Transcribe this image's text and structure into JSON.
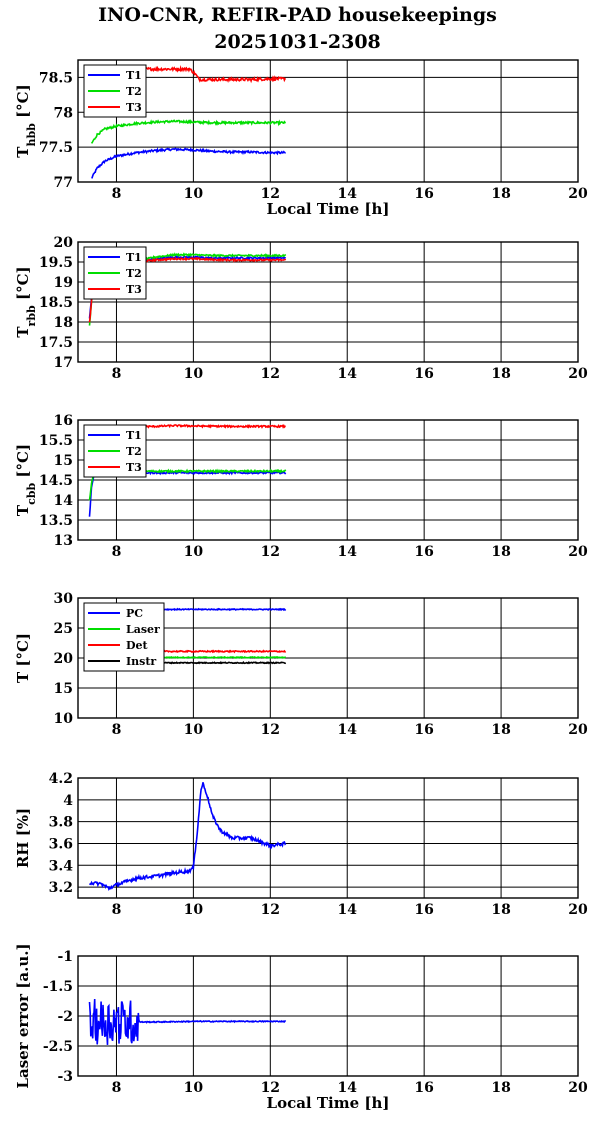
{
  "header": {
    "title_line1": "INO-CNR, REFIR-PAD housekeepings",
    "title_line2": "20251031-2308"
  },
  "colors": {
    "blue": "#0000ff",
    "green": "#00dd00",
    "red": "#ff0000",
    "black": "#000000"
  },
  "chart_data": [
    {
      "type": "line",
      "ylabel_main": "T",
      "ylabel_sub": "hbb",
      "ylabel_unit": " [°C]",
      "xlabel": "Local Time [h]",
      "xlim": [
        7,
        20
      ],
      "ylim": [
        77,
        78.75
      ],
      "xticks": [
        8,
        10,
        12,
        14,
        16,
        18,
        20
      ],
      "yticks": [
        77,
        77.5,
        78,
        78.5
      ],
      "ytick_labels": [
        "77",
        "77.5",
        "78",
        "78.5"
      ],
      "grid": true,
      "legend_position": "top-left",
      "series": [
        {
          "name": "T1",
          "color": "#0000ff",
          "noise": 0.015,
          "x": [
            7.35,
            7.5,
            7.7,
            8.0,
            8.5,
            9.0,
            9.5,
            10.0,
            10.5,
            11.0,
            11.5,
            12.0,
            12.4
          ],
          "y": [
            77.05,
            77.2,
            77.3,
            77.37,
            77.42,
            77.45,
            77.47,
            77.46,
            77.44,
            77.43,
            77.43,
            77.42,
            77.42
          ]
        },
        {
          "name": "T2",
          "color": "#00dd00",
          "noise": 0.015,
          "x": [
            7.35,
            7.5,
            7.7,
            8.0,
            8.5,
            9.0,
            9.5,
            10.0,
            10.5,
            11.0,
            11.5,
            12.0,
            12.4
          ],
          "y": [
            77.55,
            77.68,
            77.76,
            77.8,
            77.84,
            77.86,
            77.87,
            77.86,
            77.85,
            77.85,
            77.85,
            77.85,
            77.85
          ]
        },
        {
          "name": "T3",
          "color": "#ff0000",
          "noise": 0.02,
          "x": [
            7.35,
            8.0,
            9.0,
            9.9,
            10.05,
            10.15,
            10.5,
            11.0,
            11.5,
            12.0,
            12.4
          ],
          "y": [
            78.62,
            78.62,
            78.62,
            78.62,
            78.55,
            78.47,
            78.47,
            78.47,
            78.47,
            78.48,
            78.48
          ]
        }
      ]
    },
    {
      "type": "line",
      "ylabel_main": "T",
      "ylabel_sub": "rbb",
      "ylabel_unit": " [°C]",
      "xlabel": "",
      "xlim": [
        7,
        20
      ],
      "ylim": [
        17,
        20
      ],
      "xticks": [
        8,
        10,
        12,
        14,
        16,
        18,
        20
      ],
      "yticks": [
        17,
        17.5,
        18,
        18.5,
        19,
        19.5,
        20
      ],
      "ytick_labels": [
        "17",
        "17.5",
        "18",
        "18.5",
        "19",
        "19.5",
        "20"
      ],
      "grid": true,
      "legend_position": "top-left",
      "series": [
        {
          "name": "T1",
          "color": "#0000ff",
          "noise": 0.02,
          "x": [
            7.3,
            7.35,
            7.42,
            8.0,
            8.5,
            9.0,
            9.5,
            10.0,
            10.5,
            11.0,
            11.5,
            12.0,
            12.4
          ],
          "y": [
            18.1,
            18.6,
            19.35,
            19.45,
            19.5,
            19.58,
            19.62,
            19.62,
            19.6,
            19.6,
            19.6,
            19.6,
            19.6
          ]
        },
        {
          "name": "T2",
          "color": "#00dd00",
          "noise": 0.02,
          "x": [
            7.3,
            7.35,
            7.42,
            8.0,
            8.5,
            9.0,
            9.5,
            10.0,
            10.5,
            11.0,
            11.5,
            12.0,
            12.4
          ],
          "y": [
            17.9,
            18.5,
            19.35,
            19.45,
            19.52,
            19.62,
            19.68,
            19.68,
            19.66,
            19.66,
            19.66,
            19.66,
            19.66
          ]
        },
        {
          "name": "T3",
          "color": "#ff0000",
          "noise": 0.02,
          "x": [
            7.3,
            7.35,
            7.42,
            8.0,
            8.5,
            9.0,
            9.5,
            10.0,
            10.5,
            11.0,
            11.5,
            12.0,
            12.4
          ],
          "y": [
            18.0,
            18.5,
            19.3,
            19.42,
            19.5,
            19.55,
            19.58,
            19.58,
            19.56,
            19.55,
            19.55,
            19.55,
            19.55
          ]
        }
      ]
    },
    {
      "type": "line",
      "ylabel_main": "T",
      "ylabel_sub": "cbb",
      "ylabel_unit": " [°C]",
      "xlabel": "",
      "xlim": [
        7,
        20
      ],
      "ylim": [
        13,
        16
      ],
      "xticks": [
        8,
        10,
        12,
        14,
        16,
        18,
        20
      ],
      "yticks": [
        13,
        13.5,
        14,
        14.5,
        15,
        15.5,
        16
      ],
      "ytick_labels": [
        "13",
        "13.5",
        "14",
        "14.5",
        "15",
        "15.5",
        "16"
      ],
      "grid": true,
      "legend_position": "top-left",
      "series": [
        {
          "name": "T1",
          "color": "#0000ff",
          "noise": 0.02,
          "x": [
            7.3,
            7.35,
            7.42,
            8.0,
            9.0,
            10.0,
            11.0,
            12.0,
            12.4
          ],
          "y": [
            13.6,
            14.3,
            14.65,
            14.68,
            14.68,
            14.68,
            14.68,
            14.68,
            14.68
          ]
        },
        {
          "name": "T2",
          "color": "#00dd00",
          "noise": 0.02,
          "x": [
            7.3,
            7.35,
            7.42,
            8.0,
            9.0,
            10.0,
            11.0,
            12.0,
            12.4
          ],
          "y": [
            14.0,
            14.4,
            14.7,
            14.72,
            14.72,
            14.72,
            14.72,
            14.72,
            14.72
          ]
        },
        {
          "name": "T3",
          "color": "#ff0000",
          "noise": 0.02,
          "x": [
            7.3,
            7.4,
            8.0,
            8.5,
            9.0,
            9.5,
            10.0,
            11.0,
            12.0,
            12.4
          ],
          "y": [
            15.8,
            15.82,
            15.83,
            15.83,
            15.84,
            15.86,
            15.85,
            15.84,
            15.84,
            15.84
          ]
        }
      ]
    },
    {
      "type": "line",
      "ylabel_main": "T",
      "ylabel_sub": "",
      "ylabel_unit": " [°C]",
      "xlabel": "",
      "xlim": [
        7,
        20
      ],
      "ylim": [
        10,
        30
      ],
      "xticks": [
        8,
        10,
        12,
        14,
        16,
        18,
        20
      ],
      "yticks": [
        10,
        15,
        20,
        25,
        30
      ],
      "ytick_labels": [
        "10",
        "15",
        "20",
        "25",
        "30"
      ],
      "grid": true,
      "legend_position": "top-left",
      "series": [
        {
          "name": "PC",
          "color": "#0000ff",
          "noise": 0.08,
          "x": [
            7.4,
            8.0,
            9.0,
            10.0,
            11.0,
            12.0,
            12.4
          ],
          "y": [
            28.2,
            28.2,
            28.1,
            28.1,
            28.1,
            28.1,
            28.1
          ]
        },
        {
          "name": "Laser",
          "color": "#00dd00",
          "noise": 0.08,
          "x": [
            7.4,
            8.0,
            9.0,
            10.0,
            11.0,
            12.0,
            12.4
          ],
          "y": [
            20.1,
            20.1,
            20.1,
            20.1,
            20.1,
            20.1,
            20.1
          ]
        },
        {
          "name": "Det",
          "color": "#ff0000",
          "noise": 0.1,
          "x": [
            7.4,
            8.0,
            9.0,
            10.0,
            11.0,
            12.0,
            12.4
          ],
          "y": [
            21.2,
            21.2,
            21.1,
            21.1,
            21.1,
            21.1,
            21.1
          ]
        },
        {
          "name": "Instr",
          "color": "#000000",
          "noise": 0.08,
          "x": [
            7.4,
            8.0,
            9.0,
            10.0,
            11.0,
            12.0,
            12.4
          ],
          "y": [
            19.2,
            19.2,
            19.2,
            19.2,
            19.2,
            19.2,
            19.2
          ]
        }
      ]
    },
    {
      "type": "line",
      "ylabel_main": "RH [%]",
      "ylabel_sub": "",
      "ylabel_unit": "",
      "xlabel": "",
      "xlim": [
        7,
        20
      ],
      "ylim": [
        3.1,
        4.2
      ],
      "xticks": [
        8,
        10,
        12,
        14,
        16,
        18,
        20
      ],
      "yticks": [
        3.2,
        3.4,
        3.6,
        3.8,
        4.0,
        4.2
      ],
      "ytick_labels": [
        "3.2",
        "3.4",
        "3.6",
        "3.8",
        "4",
        "4.2"
      ],
      "grid": true,
      "legend_position": "none",
      "series": [
        {
          "name": "",
          "color": "#0000ff",
          "noise": 0.015,
          "x": [
            7.3,
            7.6,
            7.8,
            8.0,
            8.5,
            9.0,
            9.5,
            9.9,
            10.0,
            10.1,
            10.2,
            10.25,
            10.35,
            10.5,
            10.7,
            11.0,
            11.5,
            12.0,
            12.4
          ],
          "y": [
            3.24,
            3.23,
            3.19,
            3.22,
            3.28,
            3.3,
            3.33,
            3.35,
            3.38,
            3.7,
            4.1,
            4.15,
            4.05,
            3.85,
            3.72,
            3.65,
            3.65,
            3.58,
            3.6
          ]
        }
      ]
    },
    {
      "type": "line",
      "ylabel_main": "Laser error [a.u.]",
      "ylabel_sub": "",
      "ylabel_unit": "",
      "xlabel": "Local Time [h]",
      "xlim": [
        7,
        20
      ],
      "ylim": [
        -3,
        -1
      ],
      "xticks": [
        8,
        10,
        12,
        14,
        16,
        18,
        20
      ],
      "yticks": [
        -3,
        -2.5,
        -2,
        -1.5,
        -1
      ],
      "ytick_labels": [
        "-3",
        "-2.5",
        "-2",
        "-1.5",
        "-1"
      ],
      "grid": true,
      "legend_position": "none",
      "series": [
        {
          "name": "",
          "color": "#0000ff",
          "noise": 0.008,
          "burst_until": 8.6,
          "burst_amp": 0.38,
          "x": [
            7.3,
            8.6,
            9.0,
            10.0,
            11.0,
            12.0,
            12.4
          ],
          "y": [
            -2.1,
            -2.1,
            -2.1,
            -2.09,
            -2.09,
            -2.09,
            -2.09
          ]
        }
      ]
    }
  ]
}
